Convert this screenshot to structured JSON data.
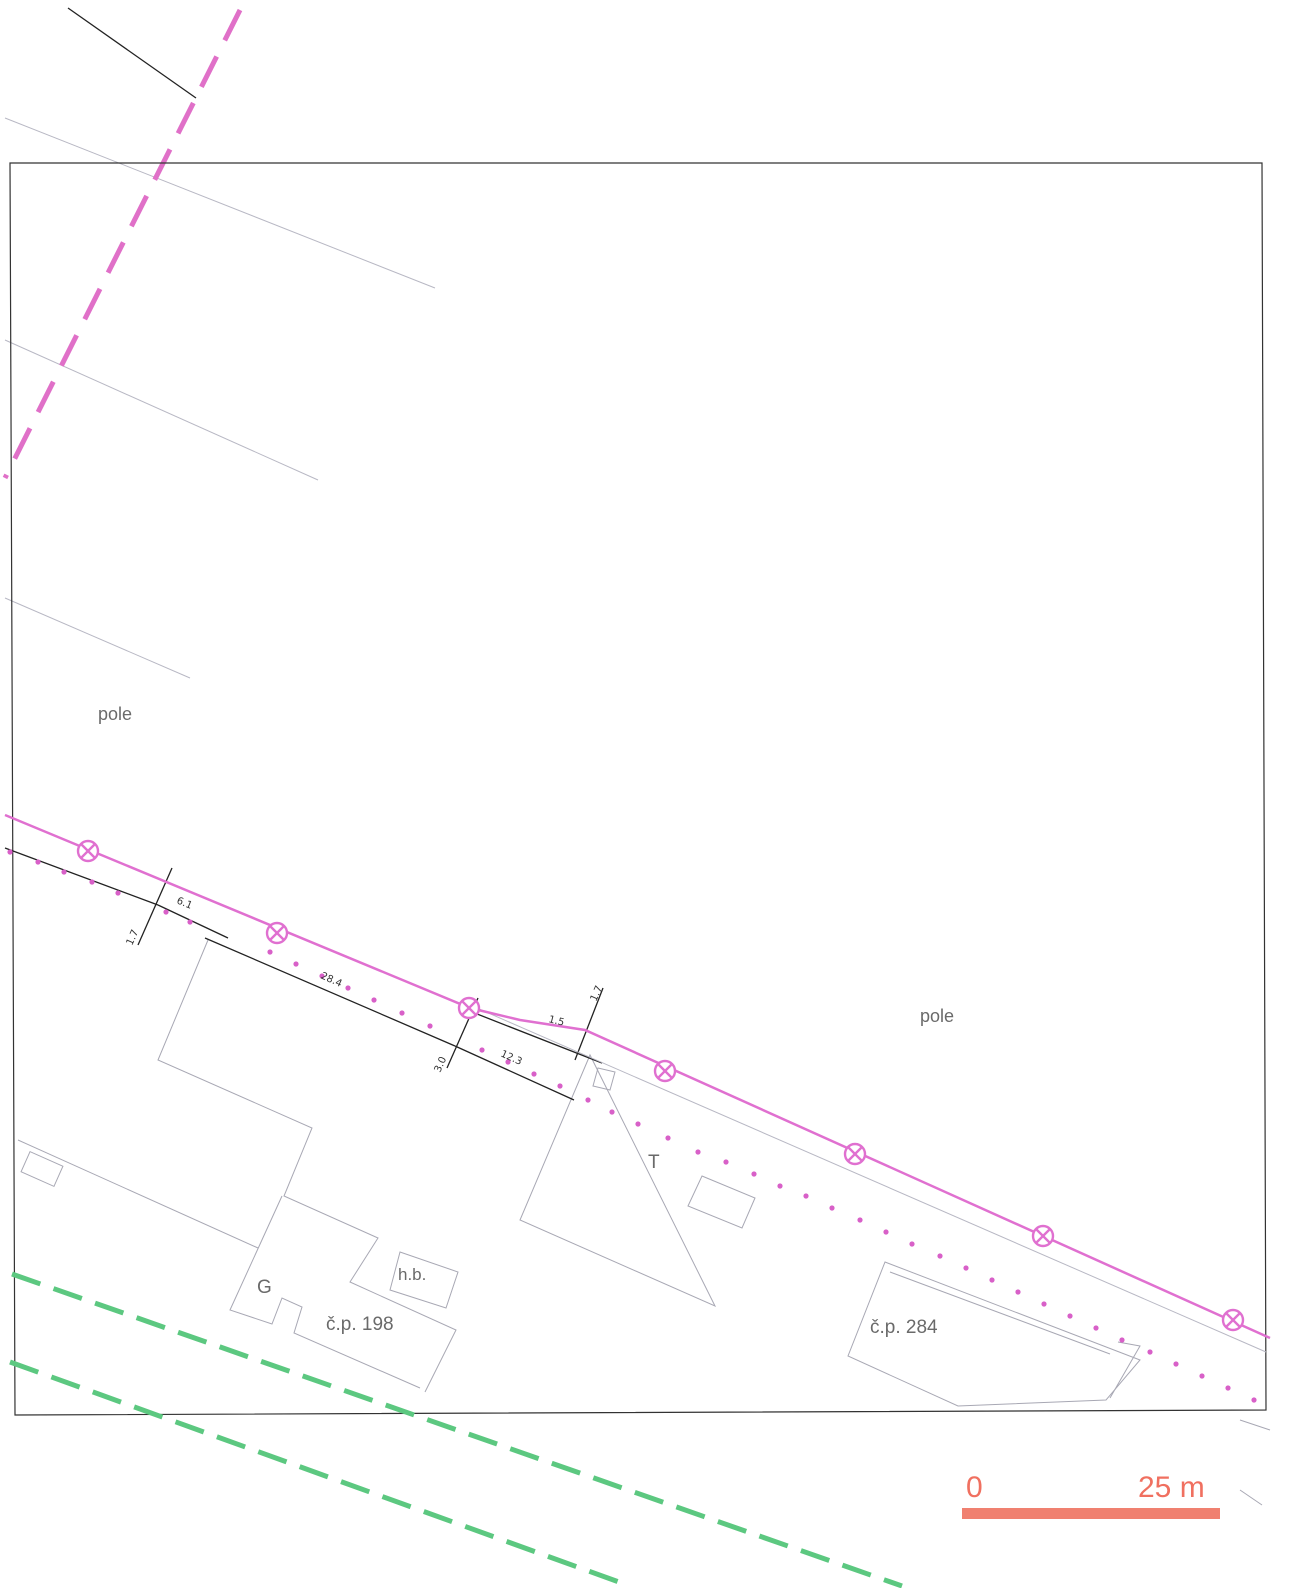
{
  "labels": {
    "field_1": "pole",
    "field_2": "pole",
    "building_198": "č.p. 198",
    "building_284": "č.p. 284",
    "garage": "G",
    "outbuilding": "h.b.",
    "transformer": "T"
  },
  "dimensions": {
    "d1": "1.7",
    "d2": "6.1",
    "d3": "28.4",
    "d4": "3.0",
    "d5": "12.3",
    "d6": "1.7",
    "d7": "1.5"
  },
  "scale_bar": {
    "start_label": "0",
    "end_label": "25 m"
  },
  "colors": {
    "power_line": "#e070d0",
    "dashed_magenta": "#e070c8",
    "dashed_green": "#5cc880",
    "dotted_magenta": "#d860c8",
    "scale": "#f08070",
    "frame": "#333333",
    "parcel": "#b8b8c0"
  },
  "icons": {
    "pole_marker": "circle-x-icon"
  }
}
